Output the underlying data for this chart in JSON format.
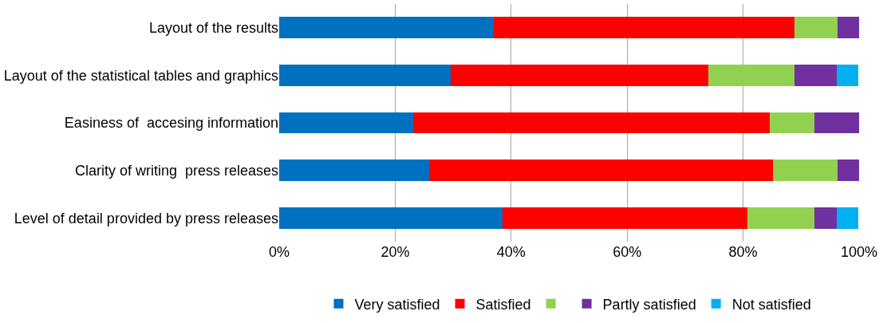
{
  "chart_data": {
    "type": "bar",
    "orientation": "horizontal",
    "stacked": true,
    "categories": [
      "Layout of the results",
      "Layout of the statistical tables and graphics",
      "Easiness of  accesing information",
      "Clarity of writing  press releases",
      "Level of detail provided by press releases"
    ],
    "series": [
      {
        "name": "Very satisfied",
        "color": "#0070c0",
        "values": [
          37.0,
          29.6,
          23.1,
          25.9,
          38.5
        ]
      },
      {
        "name": "Satisfied",
        "color": "#ff0000",
        "values": [
          51.9,
          44.4,
          61.5,
          59.3,
          42.3
        ]
      },
      {
        "color": "#92d050",
        "values": [
          7.4,
          14.8,
          7.7,
          11.1,
          11.5
        ]
      },
      {
        "name": "Partly satisfied",
        "color": "#7030a0",
        "values": [
          3.7,
          7.4,
          7.7,
          3.7,
          3.8
        ]
      },
      {
        "name": "Not satisfied",
        "color": "#00b0f0",
        "values": [
          0,
          3.7,
          0,
          0,
          3.8
        ]
      }
    ],
    "xlim": [
      0,
      100
    ],
    "xticks": [
      {
        "value": 0,
        "label": "0%"
      },
      {
        "value": 20,
        "label": "20%"
      },
      {
        "value": 40,
        "label": "40%"
      },
      {
        "value": 60,
        "label": "60%"
      },
      {
        "value": 80,
        "label": "80%"
      },
      {
        "value": 100,
        "label": "100%"
      }
    ],
    "grid": "x",
    "legend": "bottom"
  }
}
